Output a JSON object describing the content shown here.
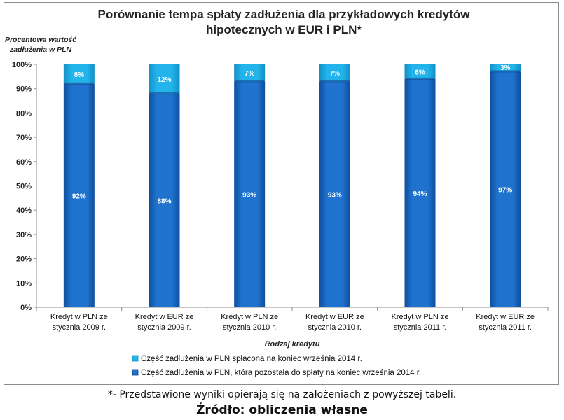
{
  "chart_data": {
    "type": "bar",
    "stacked": true,
    "title": "Porównanie tempa spłaty zadłużenia dla przykładowych kredytów hipotecznych w EUR i PLN*",
    "ylabel": "Procentowa wartość zadłużenia w PLN",
    "xlabel": "Rodzaj kredytu",
    "ylim": [
      0,
      100
    ],
    "yticks": [
      "0%",
      "10%",
      "20%",
      "30%",
      "40%",
      "50%",
      "60%",
      "70%",
      "80%",
      "90%",
      "100%"
    ],
    "categories": [
      "Kredyt w PLN ze stycznia 2009 r.",
      "Kredyt w EUR ze stycznia 2009 r.",
      "Kredyt w PLN ze stycznia 2010 r.",
      "Kredyt w EUR ze stycznia 2010 r.",
      "Kredyt w PLN ze stycznia 2011 r.",
      "Kredyt w EUR ze stycznia 2011 r."
    ],
    "series": [
      {
        "name": "Część zadłużenia w PLN, która pozostała do spłaty na koniec września 2014 r.",
        "values": [
          92,
          88,
          93,
          93,
          94,
          97
        ],
        "labels": [
          "92%",
          "88%",
          "93%",
          "93%",
          "94%",
          "97%"
        ],
        "color": "#1f73cf"
      },
      {
        "name": "Część zadłużenia w PLN spłacona na koniec września 2014 r.",
        "values": [
          8,
          12,
          7,
          7,
          6,
          3
        ],
        "labels": [
          "8%",
          "12%",
          "7%",
          "7%",
          "6%",
          "3%"
        ],
        "color": "#22b4ea"
      }
    ],
    "legend_position": "bottom",
    "grid": false
  },
  "footnote": "*- Przedstawione wyniki opierają się na założeniach z powyższej tabeli.",
  "source": "Źródło: obliczenia własne"
}
